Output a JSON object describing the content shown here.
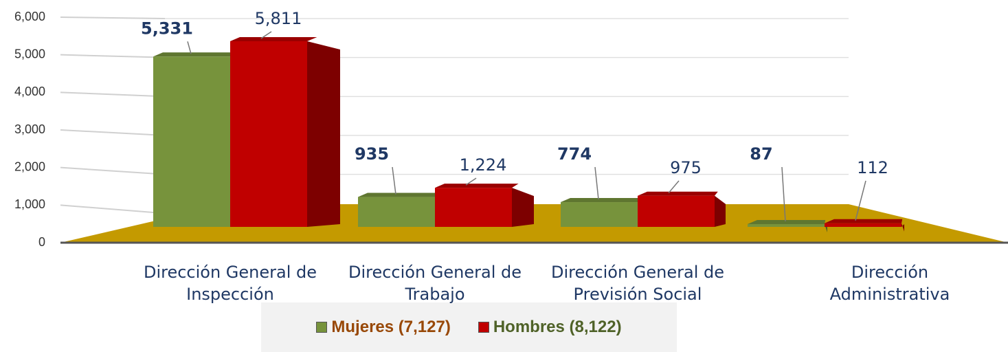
{
  "chart_data": {
    "type": "bar",
    "categories": [
      "Dirección General de Inspección",
      "Dirección General de Trabajo",
      "Dirección General de Previsión Social",
      "Dirección Administrativa"
    ],
    "series": [
      {
        "name": "Mujeres (7,127)",
        "color": "#77933c",
        "label_color": "#984807",
        "value_label_weight": "bold",
        "values": [
          5331,
          935,
          774,
          87
        ],
        "value_labels": [
          "5,331",
          "935",
          "774",
          "87"
        ]
      },
      {
        "name": "Hombres (8,122)",
        "color": "#c00000",
        "label_color": "#4f6228",
        "value_label_weight": "normal",
        "values": [
          5811,
          1224,
          975,
          112
        ],
        "value_labels": [
          "5,811",
          "1,224",
          "975",
          "112"
        ]
      }
    ],
    "ylim": [
      0,
      6000
    ],
    "yticks": [
      0,
      {
        "value": 1000,
        "label": "1,000"
      },
      {
        "value": 2000,
        "label": "2,000"
      },
      {
        "value": 3000,
        "label": "3,000"
      },
      {
        "value": 4000,
        "label": "4,000"
      },
      {
        "value": 5000,
        "label": "5,000"
      },
      {
        "value": 6000,
        "label": "6,000"
      }
    ],
    "grid": true,
    "floor_color": "#c49a00",
    "legend": "bottom"
  }
}
